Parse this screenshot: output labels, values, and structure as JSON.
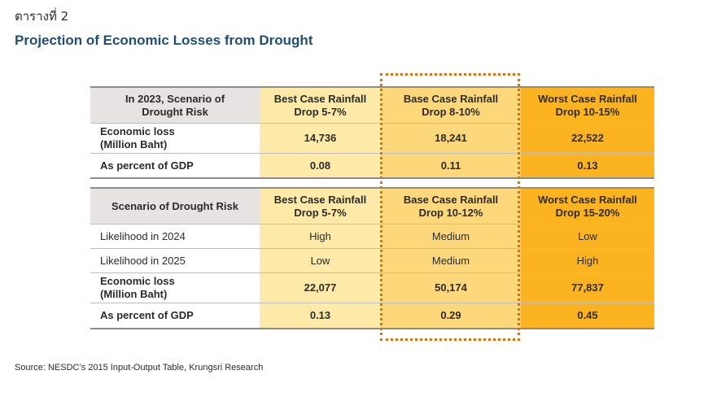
{
  "label": "ตารางที่ 2",
  "title": "Projection of Economic Losses from Drought",
  "table1": {
    "header": {
      "scenario": "In 2023, Scenario of Drought Risk",
      "best": "Best Case Rainfall Drop 5-7%",
      "base": "Base Case Rainfall Drop 8-10%",
      "worst": "Worst Case Rainfall Drop 10-15%"
    },
    "rows": [
      {
        "label": "Economic loss (Million Baht)",
        "best": "14,736",
        "base": "18,241",
        "worst": "22,522"
      },
      {
        "label": "As percent of GDP",
        "best": "0.08",
        "base": "0.11",
        "worst": "0.13"
      }
    ]
  },
  "table2": {
    "header": {
      "scenario": "Scenario of Drought Risk",
      "best": "Best Case Rainfall Drop 5-7%",
      "base": "Base Case Rainfall Drop 10-12%",
      "worst": "Worst Case Rainfall Drop 15-20%"
    },
    "rows": [
      {
        "label": "Likelihood in 2024",
        "best": "High",
        "base": "Medium",
        "worst": "Low"
      },
      {
        "label": "Likelihood in 2025",
        "best": "Low",
        "base": "Medium",
        "worst": "High"
      },
      {
        "label": "Economic loss (Million Baht)",
        "best": "22,077",
        "base": "50,174",
        "worst": "77,837"
      },
      {
        "label": "As percent of GDP",
        "best": "0.13",
        "base": "0.29",
        "worst": "0.45"
      }
    ]
  },
  "source": "Source: NESDC’s 2015 Input-Output Table, Krungsri Research",
  "colors": {
    "title": "#1f4e79",
    "best_col": "#fde9a8",
    "base_col": "#fdd87a",
    "worst_col": "#fbb31f",
    "header_scenario": "#e8e3e3",
    "highlight_border": "#d4731a"
  }
}
